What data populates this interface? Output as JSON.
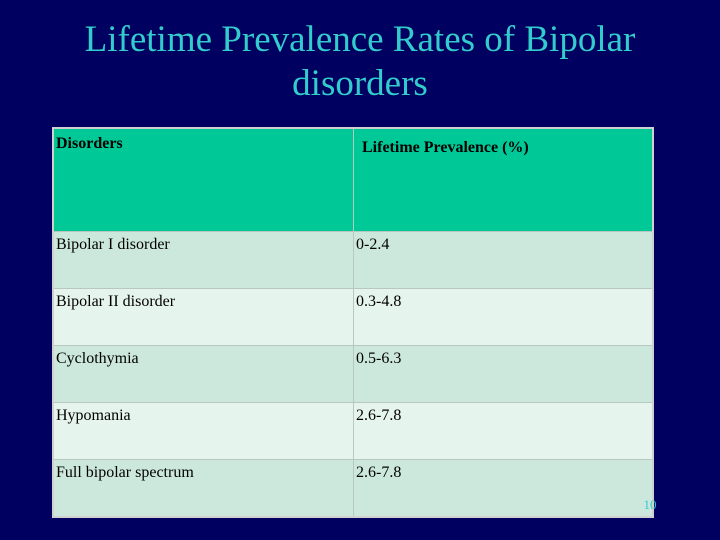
{
  "title": "Lifetime Prevalence Rates of Bipolar disorders",
  "table": {
    "header": [
      "Disorders",
      "Lifetime Prevalence (%)"
    ],
    "rows": [
      [
        "Bipolar I disorder",
        "0-2.4"
      ],
      [
        "Bipolar II disorder",
        "0.3-4.8"
      ],
      [
        "Cyclothymia",
        "0.5-6.3"
      ],
      [
        "Hypomania",
        "2.6-7.8"
      ],
      [
        "Full bipolar spectrum",
        "2.6-7.8"
      ]
    ]
  },
  "page_number": "10"
}
